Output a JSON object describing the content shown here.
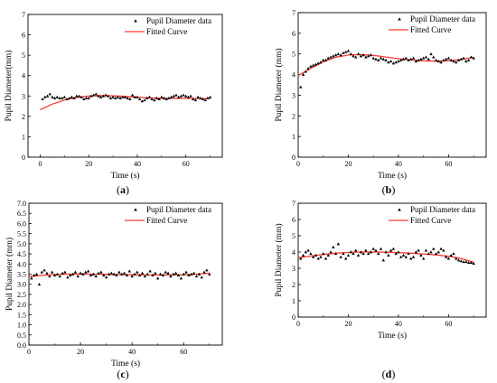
{
  "chart_data": [
    {
      "type": "scatter",
      "caption_letter": "a",
      "xlabel": "Time (s)",
      "ylabel": "Pupil Diameter(mm)",
      "xlim": [
        -5,
        75
      ],
      "ylim": [
        0,
        7
      ],
      "xticks": [
        "0",
        "20",
        "40",
        "60"
      ],
      "xtick_values": [
        0,
        20,
        40,
        60
      ],
      "yticks": [
        "0",
        "1",
        "2",
        "3",
        "4",
        "5",
        "6",
        "7"
      ],
      "ytick_values": [
        0,
        1,
        2,
        3,
        4,
        5,
        6,
        7
      ],
      "legend": {
        "data_label": "Pupil Diameter data",
        "fit_label": "Fitted Curve",
        "position": "top-right"
      },
      "series": [
        {
          "name": "Pupil Diameter data",
          "x": [
            1,
            2,
            3,
            4,
            5,
            6,
            7,
            8,
            9,
            10,
            11,
            12,
            13,
            14,
            15,
            16,
            17,
            18,
            19,
            20,
            21,
            22,
            23,
            24,
            25,
            26,
            27,
            28,
            29,
            30,
            31,
            32,
            33,
            34,
            35,
            36,
            37,
            38,
            39,
            40,
            41,
            42,
            43,
            44,
            45,
            46,
            47,
            48,
            49,
            50,
            51,
            52,
            53,
            54,
            55,
            56,
            57,
            58,
            59,
            60,
            61,
            62,
            63,
            64,
            65,
            66,
            67,
            68,
            69,
            70
          ],
          "y": [
            2.85,
            2.95,
            3.0,
            3.1,
            2.95,
            2.9,
            2.95,
            2.9,
            2.9,
            2.95,
            2.85,
            2.9,
            2.95,
            2.9,
            3.0,
            3.0,
            2.95,
            2.85,
            2.9,
            2.9,
            3.0,
            3.05,
            3.1,
            3.0,
            2.95,
            3.0,
            3.05,
            3.0,
            2.9,
            2.95,
            2.9,
            2.95,
            2.9,
            2.95,
            2.95,
            2.9,
            2.85,
            3.05,
            2.95,
            2.95,
            2.85,
            2.75,
            2.8,
            2.9,
            2.95,
            2.85,
            2.8,
            2.9,
            2.85,
            2.95,
            2.9,
            2.85,
            2.9,
            2.95,
            3.0,
            3.05,
            2.95,
            3.0,
            3.05,
            3.0,
            2.95,
            3.0,
            2.85,
            2.8,
            2.95,
            2.9,
            2.85,
            2.8,
            2.9,
            2.95
          ]
        },
        {
          "name": "Fitted Curve",
          "x": [
            0,
            5,
            10,
            15,
            20,
            25,
            30,
            35,
            40,
            45,
            50,
            55,
            60,
            65,
            70
          ],
          "y": [
            2.33,
            2.6,
            2.8,
            2.93,
            3.0,
            3.02,
            3.01,
            2.98,
            2.94,
            2.91,
            2.89,
            2.89,
            2.89,
            2.88,
            2.87
          ]
        }
      ]
    },
    {
      "type": "scatter",
      "caption_letter": "b",
      "xlabel": "Time (s)",
      "ylabel": "Pupil Diameter (mm)",
      "xlim": [
        0,
        75
      ],
      "ylim": [
        0,
        7
      ],
      "xticks": [
        "0",
        "20",
        "40",
        "60"
      ],
      "xtick_values": [
        0,
        20,
        40,
        60
      ],
      "yticks": [
        "0",
        "1",
        "2",
        "3",
        "4",
        "5",
        "6",
        "7"
      ],
      "ytick_values": [
        0,
        1,
        2,
        3,
        4,
        5,
        6,
        7
      ],
      "legend": {
        "data_label": "Pupil Diameter data",
        "fit_label": "Fitted Curve",
        "position": "top-right"
      },
      "series": [
        {
          "name": "Pupil Diameter data",
          "x": [
            1,
            2,
            3,
            4,
            5,
            6,
            7,
            8,
            9,
            10,
            11,
            12,
            13,
            14,
            15,
            16,
            17,
            18,
            19,
            20,
            21,
            22,
            23,
            24,
            25,
            26,
            27,
            28,
            29,
            30,
            31,
            32,
            33,
            34,
            35,
            36,
            37,
            38,
            39,
            40,
            41,
            42,
            43,
            44,
            45,
            46,
            47,
            48,
            49,
            50,
            51,
            52,
            53,
            54,
            55,
            56,
            57,
            58,
            59,
            60,
            61,
            62,
            63,
            64,
            65,
            66,
            67,
            68,
            69,
            70
          ],
          "y": [
            3.4,
            4.0,
            4.15,
            4.3,
            4.4,
            4.45,
            4.5,
            4.55,
            4.6,
            4.7,
            4.7,
            4.8,
            4.85,
            4.9,
            4.95,
            5.0,
            4.95,
            5.05,
            5.1,
            5.15,
            5.0,
            4.9,
            4.85,
            5.0,
            4.9,
            4.95,
            4.85,
            4.9,
            4.95,
            4.8,
            4.75,
            4.7,
            4.8,
            4.75,
            4.7,
            4.6,
            4.65,
            4.55,
            4.6,
            4.65,
            4.7,
            4.75,
            4.8,
            4.7,
            4.75,
            4.8,
            4.65,
            4.7,
            4.75,
            4.8,
            4.85,
            4.75,
            5.0,
            4.85,
            4.7,
            4.65,
            4.6,
            4.7,
            4.75,
            4.8,
            4.7,
            4.65,
            4.6,
            4.7,
            4.75,
            4.8,
            4.65,
            4.7,
            4.85,
            4.8
          ]
        },
        {
          "name": "Fitted Curve",
          "x": [
            0,
            5,
            10,
            15,
            20,
            25,
            30,
            35,
            40,
            45,
            50,
            55,
            60,
            65,
            70
          ],
          "y": [
            3.95,
            4.3,
            4.62,
            4.84,
            4.95,
            4.97,
            4.93,
            4.85,
            4.77,
            4.71,
            4.67,
            4.65,
            4.67,
            4.73,
            4.84
          ]
        }
      ]
    },
    {
      "type": "scatter",
      "caption_letter": "c",
      "xlabel": "Time  (s)",
      "ylabel": "Pupil Diameter (mm)",
      "xlim": [
        0,
        75
      ],
      "ylim": [
        0,
        7
      ],
      "xticks": [
        "0",
        "20",
        "40",
        "60"
      ],
      "xtick_values": [
        0,
        20,
        40,
        60
      ],
      "yticks": [
        "0.0",
        "0.5",
        "1.0",
        "1.5",
        "2.0",
        "2.5",
        "3.0",
        "3.5",
        "4.0",
        "4.5",
        "5.0",
        "5.5",
        "6.0",
        "6.5",
        "7.0"
      ],
      "ytick_values": [
        0,
        0.5,
        1,
        1.5,
        2,
        2.5,
        3,
        3.5,
        4,
        4.5,
        5,
        5.5,
        6,
        6.5,
        7
      ],
      "legend": {
        "data_label": "Pupil Diameter data",
        "fit_label": "Fitted Curve",
        "position": "top-right"
      },
      "series": [
        {
          "name": "Pupil Diameter data",
          "x": [
            1,
            2,
            3,
            4,
            5,
            6,
            7,
            8,
            9,
            10,
            11,
            12,
            13,
            14,
            15,
            16,
            17,
            18,
            19,
            20,
            21,
            22,
            23,
            24,
            25,
            26,
            27,
            28,
            29,
            30,
            31,
            32,
            33,
            34,
            35,
            36,
            37,
            38,
            39,
            40,
            41,
            42,
            43,
            44,
            45,
            46,
            47,
            48,
            49,
            50,
            51,
            52,
            53,
            54,
            55,
            56,
            57,
            58,
            59,
            60,
            61,
            62,
            63,
            64,
            65,
            66,
            67,
            68,
            69,
            70
          ],
          "y": [
            3.3,
            3.45,
            3.5,
            3.0,
            3.6,
            3.7,
            3.55,
            3.4,
            3.6,
            3.45,
            3.5,
            3.4,
            3.55,
            3.6,
            3.35,
            3.45,
            3.5,
            3.6,
            3.4,
            3.55,
            3.5,
            3.6,
            3.65,
            3.45,
            3.5,
            3.4,
            3.55,
            3.6,
            3.45,
            3.35,
            3.5,
            3.55,
            3.5,
            3.45,
            3.6,
            3.5,
            3.55,
            3.45,
            3.65,
            3.4,
            3.5,
            3.6,
            3.45,
            3.55,
            3.4,
            3.5,
            3.65,
            3.45,
            3.55,
            3.3,
            3.5,
            3.45,
            3.6,
            3.55,
            3.4,
            3.5,
            3.55,
            3.45,
            3.3,
            3.5,
            3.6,
            3.45,
            3.5,
            3.55,
            3.4,
            3.5,
            3.35,
            3.6,
            3.7,
            3.5
          ]
        },
        {
          "name": "Fitted Curve",
          "x": [
            0,
            5,
            10,
            15,
            20,
            25,
            30,
            35,
            40,
            45,
            50,
            55,
            60,
            65,
            70
          ],
          "y": [
            3.38,
            3.44,
            3.48,
            3.5,
            3.51,
            3.5,
            3.49,
            3.48,
            3.47,
            3.46,
            3.46,
            3.46,
            3.47,
            3.5,
            3.55
          ]
        }
      ]
    },
    {
      "type": "scatter",
      "caption_letter": "d",
      "xlabel": "Time (s)",
      "ylabel": "Pupil Diameter (mm)",
      "xlim": [
        0,
        75
      ],
      "ylim": [
        0,
        7
      ],
      "xticks": [
        "0",
        "20",
        "40",
        "60"
      ],
      "xtick_values": [
        0,
        20,
        40,
        60
      ],
      "yticks": [
        "0",
        "1",
        "2",
        "3",
        "4",
        "5",
        "6",
        "7"
      ],
      "ytick_values": [
        0,
        1,
        2,
        3,
        4,
        5,
        6,
        7
      ],
      "legend": {
        "data_label": "Pupil Diameter data",
        "fit_label": "Fitted Curve",
        "position": "top-right"
      },
      "series": [
        {
          "name": "Pupil Diameter data",
          "x": [
            1,
            2,
            3,
            4,
            5,
            6,
            7,
            8,
            9,
            10,
            11,
            12,
            13,
            14,
            15,
            16,
            17,
            18,
            19,
            20,
            21,
            22,
            23,
            24,
            25,
            26,
            27,
            28,
            29,
            30,
            31,
            32,
            33,
            34,
            35,
            36,
            37,
            38,
            39,
            40,
            41,
            42,
            43,
            44,
            45,
            46,
            47,
            48,
            49,
            50,
            51,
            52,
            53,
            54,
            55,
            56,
            57,
            58,
            59,
            60,
            61,
            62,
            63,
            64,
            65,
            66,
            67,
            68,
            69,
            70
          ],
          "y": [
            3.6,
            3.8,
            4.0,
            4.1,
            3.9,
            3.7,
            3.8,
            3.6,
            3.7,
            3.9,
            3.6,
            3.8,
            4.0,
            4.3,
            3.9,
            4.5,
            3.7,
            3.9,
            3.6,
            3.8,
            4.0,
            3.9,
            4.1,
            3.8,
            4.0,
            3.9,
            4.1,
            3.9,
            4.0,
            4.2,
            4.1,
            3.9,
            4.2,
            3.5,
            4.0,
            3.8,
            4.1,
            4.2,
            3.9,
            4.0,
            3.7,
            3.8,
            3.7,
            3.9,
            3.6,
            3.7,
            4.0,
            4.1,
            3.8,
            3.6,
            4.1,
            3.9,
            4.0,
            4.2,
            3.9,
            4.0,
            4.2,
            4.1,
            3.7,
            3.6,
            3.8,
            3.9,
            3.6,
            3.5,
            3.45,
            3.4,
            3.4,
            3.35,
            3.35,
            3.3
          ]
        },
        {
          "name": "Fitted Curve",
          "x": [
            0,
            5,
            10,
            15,
            20,
            25,
            30,
            35,
            40,
            45,
            50,
            55,
            60,
            65,
            70
          ],
          "y": [
            3.65,
            3.75,
            3.85,
            3.93,
            3.98,
            4.0,
            4.0,
            3.99,
            3.96,
            3.93,
            3.88,
            3.82,
            3.74,
            3.6,
            3.38
          ]
        }
      ]
    }
  ],
  "colors": {
    "fit_line": "#ff3b30",
    "marker": "#000000",
    "axis": "#000000"
  }
}
